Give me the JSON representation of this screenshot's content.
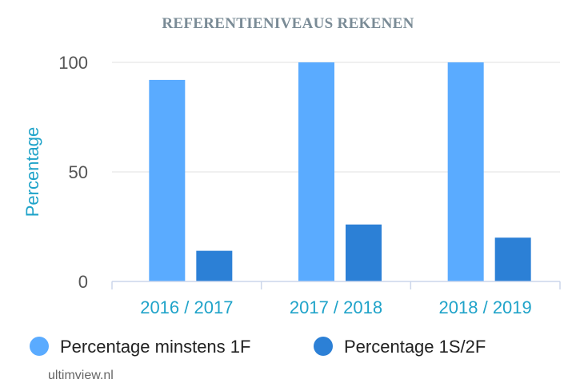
{
  "chart_data": {
    "type": "bar",
    "title": "REFERENTIENIVEAUS REKENEN",
    "ylabel": "Percentage",
    "xlabel": "",
    "ylim": [
      0,
      100
    ],
    "yticks": [
      0,
      50,
      100
    ],
    "grid": true,
    "legend_position": "bottom-left",
    "categories": [
      "2016 / 2017",
      "2017 / 2018",
      "2018 / 2019"
    ],
    "series": [
      {
        "name": "Percentage minstens 1F",
        "color": "#5aabff",
        "values": [
          92,
          100,
          100
        ]
      },
      {
        "name": "Percentage 1S/2F",
        "color": "#2c80d6",
        "values": [
          14,
          26,
          20
        ]
      }
    ]
  },
  "credit": "ultimview.nl"
}
